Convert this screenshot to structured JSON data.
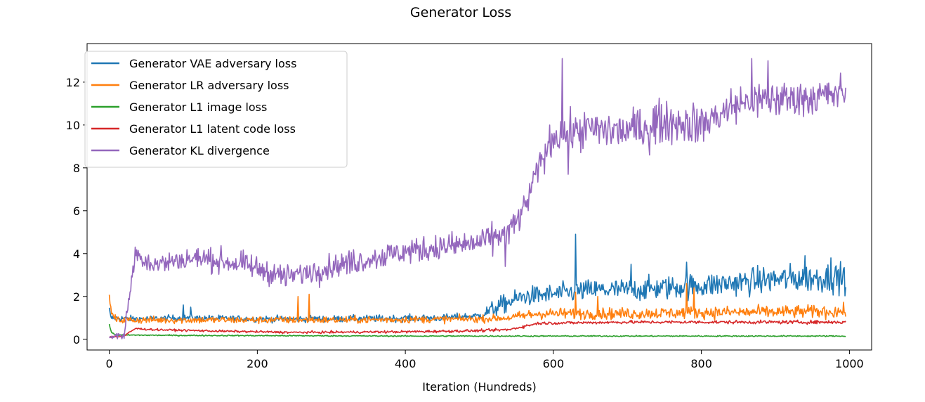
{
  "chart_data": {
    "type": "line",
    "title": "Generator Loss",
    "xlabel": "Iteration (Hundreds)",
    "ylabel": "",
    "xlim": [
      -30,
      1030
    ],
    "ylim": [
      -0.5,
      13.8
    ],
    "xticks": [
      0,
      200,
      400,
      600,
      800,
      1000
    ],
    "yticks": [
      0,
      2,
      4,
      6,
      8,
      10,
      12
    ],
    "grid": false,
    "legend_position": "top-left",
    "x_range": [
      0,
      995
    ],
    "series": [
      {
        "name": "Generator VAE adversary loss",
        "color": "#1f77b4",
        "keypoints": [
          [
            0,
            1.4
          ],
          [
            2,
            1.0
          ],
          [
            40,
            0.95
          ],
          [
            100,
            1.0
          ],
          [
            200,
            0.95
          ],
          [
            300,
            0.95
          ],
          [
            450,
            1.0
          ],
          [
            500,
            1.1
          ],
          [
            530,
            1.6
          ],
          [
            560,
            2.0
          ],
          [
            600,
            2.1
          ],
          [
            650,
            2.3
          ],
          [
            700,
            2.3
          ],
          [
            800,
            2.5
          ],
          [
            900,
            2.8
          ],
          [
            995,
            2.9
          ]
        ],
        "noise": [
          [
            0,
            0.1
          ],
          [
            500,
            0.12
          ],
          [
            520,
            0.3
          ],
          [
            995,
            0.5
          ]
        ],
        "spikes": [
          [
            100,
            1.6
          ],
          [
            110,
            1.5
          ],
          [
            270,
            1.7
          ],
          [
            630,
            4.9
          ],
          [
            705,
            3.5
          ],
          [
            780,
            3.6
          ],
          [
            940,
            3.9
          ],
          [
            975,
            3.8
          ]
        ]
      },
      {
        "name": "Generator LR adversary loss",
        "color": "#ff7f0e",
        "keypoints": [
          [
            0,
            1.9
          ],
          [
            3,
            1.2
          ],
          [
            10,
            0.9
          ],
          [
            100,
            0.9
          ],
          [
            300,
            0.9
          ],
          [
            500,
            0.95
          ],
          [
            540,
            1.0
          ],
          [
            580,
            1.2
          ],
          [
            700,
            1.2
          ],
          [
            800,
            1.25
          ],
          [
            995,
            1.3
          ]
        ],
        "noise": [
          [
            0,
            0.12
          ],
          [
            540,
            0.12
          ],
          [
            560,
            0.18
          ],
          [
            995,
            0.22
          ]
        ],
        "spikes": [
          [
            255,
            2.0
          ],
          [
            270,
            2.1
          ],
          [
            630,
            2.2
          ],
          [
            660,
            2.0
          ],
          [
            780,
            2.6
          ],
          [
            790,
            2.4
          ]
        ]
      },
      {
        "name": "Generator L1 image loss",
        "color": "#2ca02c",
        "keypoints": [
          [
            0,
            0.7
          ],
          [
            3,
            0.3
          ],
          [
            10,
            0.2
          ],
          [
            100,
            0.18
          ],
          [
            400,
            0.15
          ],
          [
            700,
            0.15
          ],
          [
            995,
            0.15
          ]
        ],
        "noise": [
          [
            0,
            0.02
          ],
          [
            995,
            0.02
          ]
        ],
        "spikes": []
      },
      {
        "name": "Generator L1 latent code loss",
        "color": "#d62728",
        "keypoints": [
          [
            0,
            0.1
          ],
          [
            20,
            0.15
          ],
          [
            35,
            0.5
          ],
          [
            60,
            0.45
          ],
          [
            150,
            0.38
          ],
          [
            250,
            0.32
          ],
          [
            400,
            0.35
          ],
          [
            500,
            0.4
          ],
          [
            540,
            0.45
          ],
          [
            580,
            0.75
          ],
          [
            700,
            0.8
          ],
          [
            995,
            0.8
          ]
        ],
        "noise": [
          [
            0,
            0.03
          ],
          [
            995,
            0.06
          ]
        ],
        "spikes": []
      },
      {
        "name": "Generator KL divergence",
        "color": "#9467bd",
        "keypoints": [
          [
            0,
            0.1
          ],
          [
            20,
            0.2
          ],
          [
            35,
            4.0
          ],
          [
            60,
            3.5
          ],
          [
            120,
            3.8
          ],
          [
            180,
            3.5
          ],
          [
            240,
            2.9
          ],
          [
            300,
            3.4
          ],
          [
            400,
            4.1
          ],
          [
            500,
            4.5
          ],
          [
            540,
            5.0
          ],
          [
            560,
            6.0
          ],
          [
            580,
            8.0
          ],
          [
            600,
            9.5
          ],
          [
            650,
            9.8
          ],
          [
            700,
            9.7
          ],
          [
            750,
            10.2
          ],
          [
            800,
            10.0
          ],
          [
            850,
            11.0
          ],
          [
            900,
            11.2
          ],
          [
            950,
            11.3
          ],
          [
            995,
            11.5
          ]
        ],
        "noise": [
          [
            0,
            0.02
          ],
          [
            30,
            0.35
          ],
          [
            500,
            0.45
          ],
          [
            560,
            0.5
          ],
          [
            700,
            0.7
          ],
          [
            995,
            0.6
          ]
        ],
        "spikes": [
          [
            612,
            13.1
          ],
          [
            868,
            13.1
          ],
          [
            890,
            13.0
          ],
          [
            535,
            3.4
          ],
          [
            620,
            7.7
          ],
          [
            730,
            8.6
          ]
        ]
      }
    ]
  }
}
